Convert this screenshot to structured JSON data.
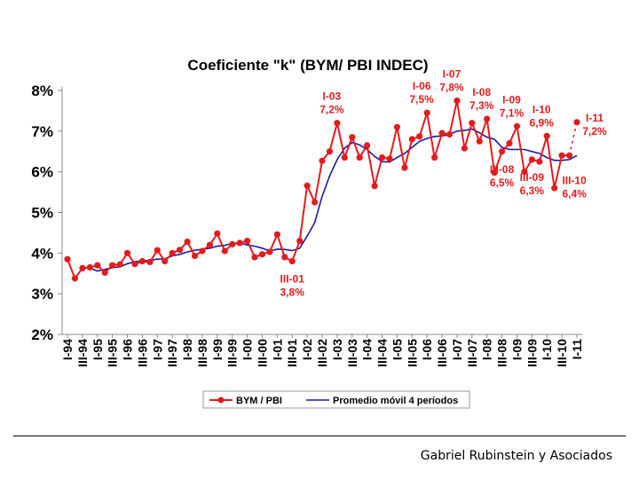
{
  "chart_data": {
    "type": "line",
    "title": "Coeficiente \"k\" (BYM/ PBI INDEC)",
    "xlabel": "",
    "ylabel": "",
    "ylim": [
      2,
      8
    ],
    "y_ticks": [
      "2%",
      "3%",
      "4%",
      "5%",
      "6%",
      "7%",
      "8%"
    ],
    "x_tick_labels": [
      "I-94",
      "III-94",
      "I-95",
      "III-95",
      "I-96",
      "III-96",
      "I-97",
      "III-97",
      "I-98",
      "III-98",
      "I-99",
      "III-99",
      "I-00",
      "III-00",
      "I-01",
      "III-01",
      "I-02",
      "III-02",
      "I-03",
      "III-03",
      "I-04",
      "III-04",
      "I-05",
      "III-05",
      "I-06",
      "III-06",
      "I-07",
      "III-07",
      "I-08",
      "III-08",
      "I-09",
      "III-09",
      "I-10",
      "III-10",
      "I-11"
    ],
    "series": [
      {
        "name": "BYM / PBI",
        "color": "#e41a1c",
        "values": [
          3.85,
          3.38,
          3.63,
          3.65,
          3.7,
          3.52,
          3.7,
          3.72,
          4.0,
          3.73,
          3.8,
          3.78,
          4.07,
          3.8,
          4.0,
          4.08,
          4.28,
          3.93,
          4.05,
          4.2,
          4.48,
          4.05,
          4.22,
          4.25,
          4.3,
          3.9,
          3.97,
          4.03,
          4.46,
          3.9,
          3.8,
          4.3,
          5.66,
          5.25,
          6.27,
          6.5,
          7.2,
          6.35,
          6.85,
          6.35,
          6.65,
          5.65,
          6.35,
          6.32,
          7.1,
          6.1,
          6.8,
          6.87,
          7.45,
          6.35,
          6.95,
          6.92,
          7.75,
          6.58,
          7.2,
          6.75,
          7.3,
          5.98,
          6.5,
          6.7,
          7.12,
          6.0,
          6.3,
          6.25,
          6.88,
          5.6,
          6.4,
          6.4,
          7.22
        ]
      },
      {
        "name": "Promedio móvil 4 períodos",
        "color": "#1a1aa6",
        "values": [
          null,
          null,
          null,
          3.63,
          3.56,
          3.6,
          3.64,
          3.66,
          3.74,
          3.79,
          3.81,
          3.82,
          3.85,
          3.86,
          3.93,
          3.97,
          4.03,
          4.07,
          4.09,
          4.12,
          4.17,
          4.19,
          4.24,
          4.25,
          4.2,
          4.17,
          4.12,
          4.05,
          4.1,
          4.09,
          4.06,
          4.12,
          4.42,
          4.75,
          5.4,
          5.9,
          6.3,
          6.58,
          6.72,
          6.66,
          6.55,
          6.38,
          6.25,
          6.24,
          6.35,
          6.45,
          6.6,
          6.75,
          6.82,
          6.87,
          6.88,
          6.92,
          7.0,
          7.02,
          7.05,
          6.96,
          6.85,
          6.8,
          6.6,
          6.55,
          6.55,
          6.55,
          6.5,
          6.45,
          6.35,
          6.28,
          6.28,
          6.3,
          6.4
        ]
      }
    ],
    "annotations": [
      {
        "label": "I-03",
        "value": "7,2%",
        "idx": 36,
        "pos": "above"
      },
      {
        "label": "I-06",
        "value": "7,5%",
        "idx": 48,
        "pos": "above"
      },
      {
        "label": "I-07",
        "value": "7,8%",
        "idx": 52,
        "pos": "above"
      },
      {
        "label": "I-08",
        "value": "7,3%",
        "idx": 56,
        "pos": "above"
      },
      {
        "label": "I-09",
        "value": "7,1%",
        "idx": 60,
        "pos": "above"
      },
      {
        "label": "I-10",
        "value": "6,9%",
        "idx": 64,
        "pos": "above"
      },
      {
        "label": "I-11",
        "value": "7,2%",
        "idx": 68,
        "pos": "right"
      },
      {
        "label": "III-01",
        "value": "3,8%",
        "idx": 30,
        "pos": "below"
      },
      {
        "label": "III-08",
        "value": "6,5%",
        "idx": 58,
        "pos": "below"
      },
      {
        "label": "III-09",
        "value": "6,3%",
        "idx": 62,
        "pos": "below"
      },
      {
        "label": "III-10",
        "value": "6,4%",
        "idx": 66,
        "pos": "right-below"
      }
    ]
  },
  "footer": {
    "credit": "Gabriel Rubinstein y Asociados"
  }
}
